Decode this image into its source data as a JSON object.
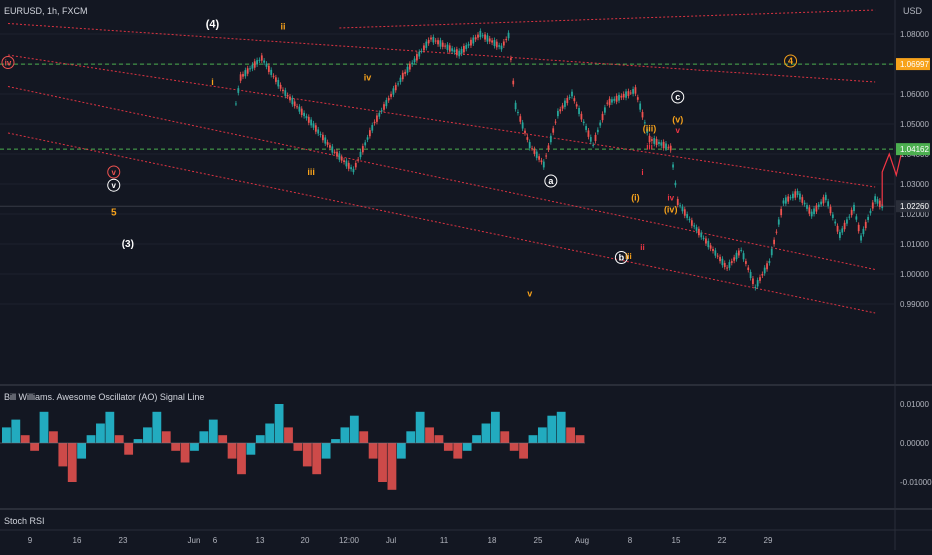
{
  "header": {
    "symbol_line": "EURUSD, 1h, FXCM",
    "price_axis_label": "USD"
  },
  "colors": {
    "background": "#131722",
    "up": "#26a69a",
    "down": "#ef5350",
    "wave_orange": "#f7a21b",
    "wave_red": "#f23645",
    "channel": "#f23645",
    "hline_green": "#4caf50"
  },
  "chart_data": [
    {
      "type": "line",
      "title": "",
      "series": [
        {
          "path": [
            [
              "Jun 2",
              1.0525
            ],
            [
              "Jun 3",
              1.0655
            ],
            [
              "Jun 6",
              1.072
            ],
            [
              "Jun 9",
              1.0612
            ],
            [
              "Jun 13",
              1.0505
            ],
            [
              "Jun 16",
              1.0415
            ],
            [
              "Jun 19",
              1.0345
            ],
            [
              "Jun 22",
              1.0505
            ],
            [
              "Jun 26",
              1.066
            ],
            [
              "Jun 30",
              1.0785
            ],
            [
              "Jul 3",
              1.0735
            ],
            [
              "Jul 6",
              1.08
            ],
            [
              "Jul 9",
              1.0755
            ],
            [
              "Jul 10",
              1.0795
            ],
            [
              "Jul 11",
              1.056
            ],
            [
              "Jul 13",
              1.043
            ],
            [
              "Jul 15",
              1.0365
            ],
            [
              "Jul 17",
              1.0535
            ],
            [
              "Jul 19",
              1.06
            ],
            [
              "Jul 22",
              1.043
            ],
            [
              "Jul 24",
              1.057
            ],
            [
              "Jul 28",
              1.0612
            ],
            [
              "Jul 30",
              1.045
            ],
            [
              "Aug 2",
              1.042
            ],
            [
              "Aug 3",
              1.024
            ],
            [
              "Aug 5",
              1.017
            ],
            [
              "Aug 8",
              1.008
            ],
            [
              "Aug 10",
              1.002
            ],
            [
              "Aug 12",
              1.008
            ],
            [
              "Aug 14",
              0.9955
            ],
            [
              "Aug 16",
              1.004
            ],
            [
              "Aug 18",
              1.024
            ],
            [
              "Aug 20",
              1.027
            ],
            [
              "Aug 22",
              1.02
            ],
            [
              "Aug 24",
              1.0255
            ],
            [
              "Aug 26",
              1.013
            ],
            [
              "Aug 28",
              1.022
            ],
            [
              "Aug 29",
              1.012
            ],
            [
              "Aug 31",
              1.025
            ],
            [
              "Sep 1",
              1.0226
            ]
          ]
        }
      ],
      "projection": [
        [
          "Sep 1",
          1.0226
        ],
        [
          "Sep 1",
          1.034
        ],
        [
          "Sep 2",
          1.04
        ],
        [
          "Sep 3",
          1.033
        ],
        [
          "Sep 4",
          1.043
        ]
      ],
      "x_tick_labels": [
        "9",
        "16",
        "23",
        "Jun",
        "6",
        "13",
        "20",
        "12:00",
        "Jul",
        "11",
        "18",
        "25",
        "Aug",
        "8",
        "15",
        "22",
        "29"
      ],
      "y_ticks": [
        "1.08000",
        "1.07000",
        "1.06000",
        "1.05000",
        "1.04000",
        "1.03000",
        "1.02000",
        "1.01000",
        "1.00000",
        "0.99000"
      ],
      "price_labels": [
        {
          "value": 1.06997,
          "text": "1.06997",
          "color": "#f7a21b"
        },
        {
          "value": 1.04162,
          "text": "1.04162",
          "color": "#4caf50"
        },
        {
          "value": 1.0226,
          "text": "1.02260",
          "color": "#2a2e39"
        }
      ],
      "horizontal_lines": [
        {
          "y": 1.06997,
          "style": "dashed",
          "color": "#4caf50"
        },
        {
          "y": 1.04162,
          "style": "dashed",
          "color": "#4caf50"
        },
        {
          "y": 1.0226,
          "style": "solid",
          "color": "#363a45"
        }
      ],
      "wave_labels": [
        {
          "text": "(4)",
          "x": "May 30",
          "y": 1.0822,
          "color": "#ffffff",
          "size": 11
        },
        {
          "text": "ii",
          "x": "Jun 9",
          "y": 1.0815,
          "color": "#f7a21b",
          "size": 9
        },
        {
          "text": "iv",
          "x": "May 1",
          "y": 1.0695,
          "color": "#ef5350",
          "size": 8,
          "circle": true
        },
        {
          "text": "i",
          "x": "May 30",
          "y": 1.063,
          "color": "#f7a21b",
          "size": 9
        },
        {
          "text": "iv",
          "x": "Jun 21",
          "y": 1.0645,
          "color": "#f7a21b",
          "size": 9
        },
        {
          "text": "iii",
          "x": "Jun 13",
          "y": 1.033,
          "color": "#f7a21b",
          "size": 9
        },
        {
          "text": "v",
          "x": "May 16",
          "y": 1.033,
          "color": "#ef5350",
          "size": 8,
          "circle": true
        },
        {
          "text": "v",
          "x": "May 16",
          "y": 1.0286,
          "color": "#ffffff",
          "size": 8,
          "circle": true
        },
        {
          "text": "5",
          "x": "May 16",
          "y": 1.0195,
          "color": "#f7a21b",
          "size": 10
        },
        {
          "text": "(3)",
          "x": "May 18",
          "y": 1.009,
          "color": "#ffffff",
          "size": 10
        },
        {
          "text": "a",
          "x": "Jul 16",
          "y": 1.03,
          "color": "#ffffff",
          "size": 9,
          "circle": true
        },
        {
          "text": "b",
          "x": "Jul 26",
          "y": 1.0045,
          "color": "#ffffff",
          "size": 9,
          "circle": true
        },
        {
          "text": "iii",
          "x": "Jul 27",
          "y": 1.005,
          "color": "#f7a21b",
          "size": 8
        },
        {
          "text": "(i)",
          "x": "Jul 28",
          "y": 1.0245,
          "color": "#f7a21b",
          "size": 9
        },
        {
          "text": "ii",
          "x": "Jul 29",
          "y": 1.008,
          "color": "#f23645",
          "size": 8
        },
        {
          "text": "i",
          "x": "Jul 29",
          "y": 1.033,
          "color": "#f23645",
          "size": 8
        },
        {
          "text": "(iii)",
          "x": "Jul 30",
          "y": 1.0475,
          "color": "#f7a21b",
          "size": 9
        },
        {
          "text": "iii",
          "x": "Jul 30",
          "y": 1.0415,
          "color": "#f23645",
          "size": 8
        },
        {
          "text": "iv",
          "x": "Aug 2",
          "y": 1.0245,
          "color": "#f23645",
          "size": 8
        },
        {
          "text": "(iv)",
          "x": "Aug 2",
          "y": 1.0205,
          "color": "#f7a21b",
          "size": 9
        },
        {
          "text": "v",
          "x": "Aug 3",
          "y": 1.047,
          "color": "#f23645",
          "size": 8
        },
        {
          "text": "(v)",
          "x": "Aug 3",
          "y": 1.0505,
          "color": "#f7a21b",
          "size": 9
        },
        {
          "text": "c",
          "x": "Aug 3",
          "y": 1.058,
          "color": "#ffffff",
          "size": 9,
          "circle": true
        },
        {
          "text": "v",
          "x": "Jul 13",
          "y": 0.9925,
          "color": "#f7a21b",
          "size": 9
        },
        {
          "text": "4",
          "x": "Aug 19",
          "y": 1.07,
          "color": "#f7a21b",
          "size": 9,
          "circle": true
        }
      ],
      "channel_lines": [
        {
          "from": [
            "May 1",
            1.0835
          ],
          "to": [
            "Aug 31",
            1.064
          ]
        },
        {
          "from": [
            "May 1",
            1.073
          ],
          "to": [
            "Aug 31",
            1.029
          ]
        },
        {
          "from": [
            "May 1",
            1.0625
          ],
          "to": [
            "Aug 31",
            1.0015
          ]
        },
        {
          "from": [
            "May 1",
            1.047
          ],
          "to": [
            "Aug 31",
            0.987
          ]
        },
        {
          "from": [
            "Jun 17",
            1.082
          ],
          "to": [
            "Aug 31",
            1.088
          ]
        }
      ]
    },
    {
      "type": "bar",
      "title": "Bill Williams. Awesome Oscillator (AO) Signal Line",
      "y_ticks": [
        "0.01000",
        "0.00000",
        "-0.01000"
      ],
      "values_note": "histogram bars in red/teal oscillating around zero",
      "values": [
        0.004,
        0.006,
        0.002,
        -0.002,
        0.008,
        0.003,
        -0.006,
        -0.01,
        -0.004,
        0.002,
        0.005,
        0.008,
        0.002,
        -0.003,
        0.001,
        0.004,
        0.008,
        0.003,
        -0.002,
        -0.005,
        -0.002,
        0.003,
        0.006,
        0.002,
        -0.004,
        -0.008,
        -0.003,
        0.002,
        0.005,
        0.01,
        0.004,
        -0.002,
        -0.006,
        -0.008,
        -0.004,
        0.001,
        0.004,
        0.007,
        0.003,
        -0.004,
        -0.01,
        -0.012,
        -0.004,
        0.003,
        0.008,
        0.004,
        0.002,
        -0.002,
        -0.004,
        -0.002,
        0.002,
        0.005,
        0.008,
        0.003,
        -0.002,
        -0.004,
        0.002,
        0.004,
        0.007,
        0.008,
        0.004,
        0.002
      ]
    },
    {
      "type": "line",
      "title": "Stoch RSI"
    }
  ]
}
